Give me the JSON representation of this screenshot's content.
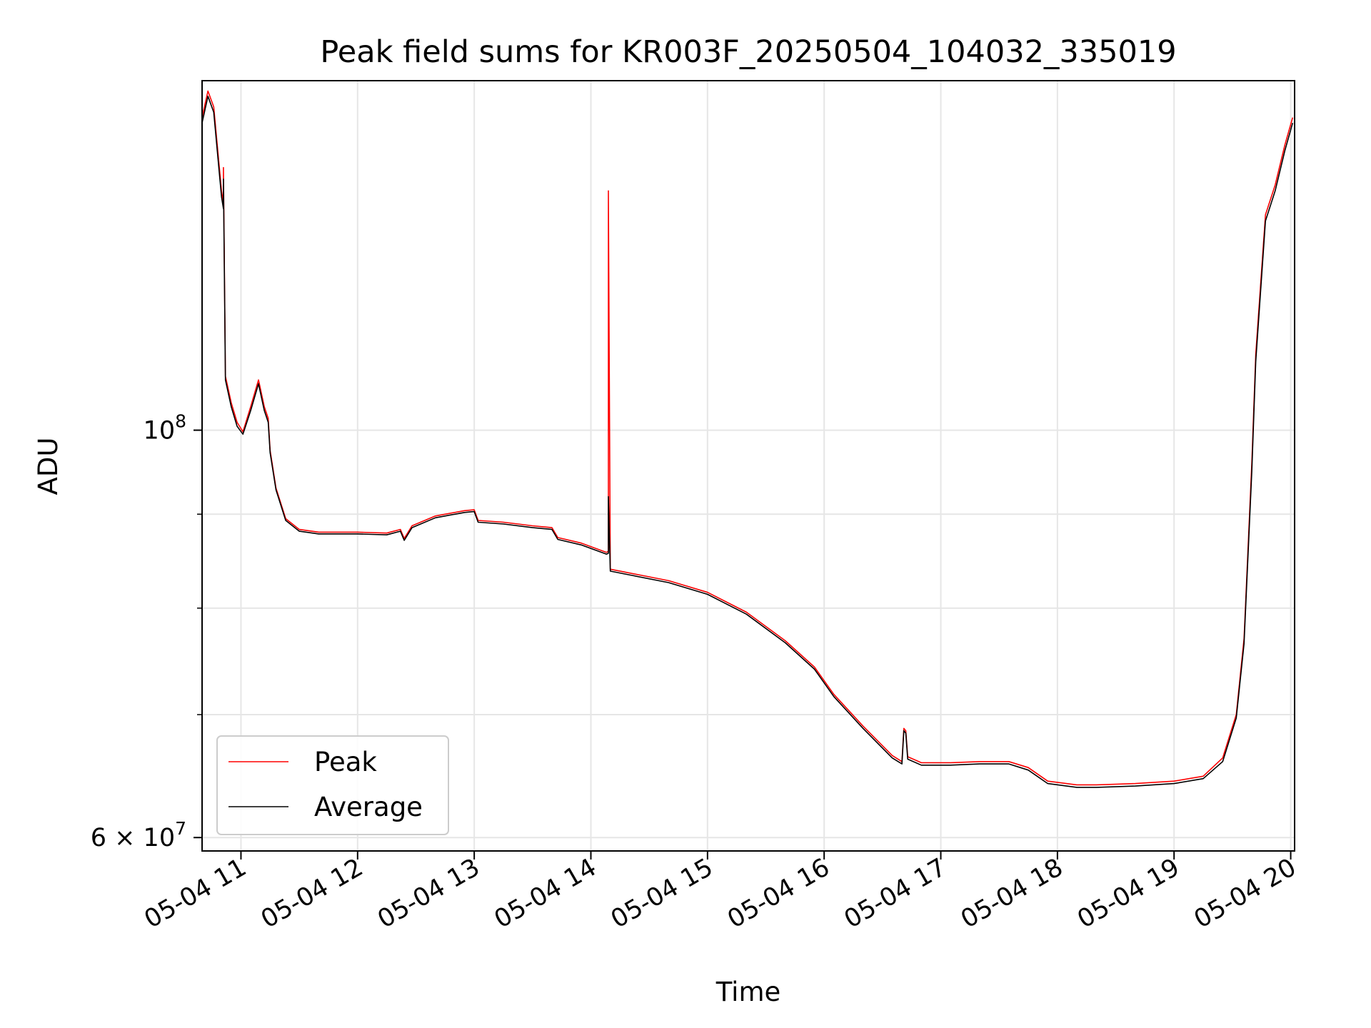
{
  "chart_data": {
    "type": "line",
    "title": "Peak field sums for KR003F_20250504_104032_335019",
    "xlabel": "Time",
    "ylabel": "ADU",
    "x_scale": "time",
    "y_scale": "log",
    "xlim": [
      "2025-05-04 10:40",
      "2025-05-04 20:02"
    ],
    "ylim": [
      59000000,
      155000000
    ],
    "x_ticks": [
      "2025-05-04 11:00",
      "2025-05-04 12:00",
      "2025-05-04 13:00",
      "2025-05-04 14:00",
      "2025-05-04 15:00",
      "2025-05-04 16:00",
      "2025-05-04 17:00",
      "2025-05-04 18:00",
      "2025-05-04 19:00",
      "2025-05-04 20:00"
    ],
    "x_tick_labels": [
      "05-04 11",
      "05-04 12",
      "05-04 13",
      "05-04 14",
      "05-04 15",
      "05-04 16",
      "05-04 17",
      "05-04 18",
      "05-04 19",
      "05-04 20"
    ],
    "y_major_ticks": [
      100000000,
      60000000
    ],
    "y_major_tick_labels": [
      {
        "base": "10",
        "exp": "8"
      },
      {
        "coef": "6 × ",
        "base": "10",
        "exp": "7"
      }
    ],
    "y_minor_ticks": [
      70000000,
      80000000,
      90000000
    ],
    "grid": true,
    "legend": "lower-left",
    "series": [
      {
        "name": "Peak",
        "color": "#ff0000",
        "points": [
          [
            "2025-05-04 10:40",
            148000000
          ],
          [
            "2025-05-04 10:43",
            153000000
          ],
          [
            "2025-05-04 10:46",
            150000000
          ],
          [
            "2025-05-04 10:50",
            135000000
          ],
          [
            "2025-05-04 10:51",
            133000000
          ],
          [
            "2025-05-04 10:51",
            139000000
          ],
          [
            "2025-05-04 10:52",
            107000000
          ],
          [
            "2025-05-04 10:55",
            103500000
          ],
          [
            "2025-05-04 10:58",
            101000000
          ],
          [
            "2025-05-04 11:01",
            99800000
          ],
          [
            "2025-05-04 11:05",
            103000000
          ],
          [
            "2025-05-04 11:09",
            106500000
          ],
          [
            "2025-05-04 11:12",
            103000000
          ],
          [
            "2025-05-04 11:14",
            101500000
          ],
          [
            "2025-05-04 11:15",
            97500000
          ],
          [
            "2025-05-04 11:18",
            93000000
          ],
          [
            "2025-05-04 11:23",
            89500000
          ],
          [
            "2025-05-04 11:30",
            88300000
          ],
          [
            "2025-05-04 11:40",
            88000000
          ],
          [
            "2025-05-04 12:00",
            88000000
          ],
          [
            "2025-05-04 12:15",
            87900000
          ],
          [
            "2025-05-04 12:22",
            88300000
          ],
          [
            "2025-05-04 12:24",
            87300000
          ],
          [
            "2025-05-04 12:28",
            88700000
          ],
          [
            "2025-05-04 12:40",
            89800000
          ],
          [
            "2025-05-04 12:55",
            90400000
          ],
          [
            "2025-05-04 13:00",
            90500000
          ],
          [
            "2025-05-04 13:02",
            89300000
          ],
          [
            "2025-05-04 13:15",
            89100000
          ],
          [
            "2025-05-04 13:30",
            88700000
          ],
          [
            "2025-05-04 13:40",
            88500000
          ],
          [
            "2025-05-04 13:43",
            87400000
          ],
          [
            "2025-05-04 13:55",
            86800000
          ],
          [
            "2025-05-04 14:08",
            85800000
          ],
          [
            "2025-05-04 14:09",
            85900000
          ],
          [
            "2025-05-04 14:09",
            135000000
          ],
          [
            "2025-05-04 14:10",
            84000000
          ],
          [
            "2025-05-04 14:20",
            83600000
          ],
          [
            "2025-05-04 14:40",
            82800000
          ],
          [
            "2025-05-04 15:00",
            81600000
          ],
          [
            "2025-05-04 15:20",
            79600000
          ],
          [
            "2025-05-04 15:40",
            76800000
          ],
          [
            "2025-05-04 15:55",
            74300000
          ],
          [
            "2025-05-04 16:05",
            71800000
          ],
          [
            "2025-05-04 16:20",
            69000000
          ],
          [
            "2025-05-04 16:35",
            66500000
          ],
          [
            "2025-05-04 16:40",
            66000000
          ],
          [
            "2025-05-04 16:41",
            68800000
          ],
          [
            "2025-05-04 16:42",
            68600000
          ],
          [
            "2025-05-04 16:43",
            66400000
          ],
          [
            "2025-05-04 16:50",
            65900000
          ],
          [
            "2025-05-04 17:05",
            65900000
          ],
          [
            "2025-05-04 17:20",
            66000000
          ],
          [
            "2025-05-04 17:35",
            66000000
          ],
          [
            "2025-05-04 17:45",
            65500000
          ],
          [
            "2025-05-04 17:55",
            64400000
          ],
          [
            "2025-05-04 18:10",
            64100000
          ],
          [
            "2025-05-04 18:20",
            64100000
          ],
          [
            "2025-05-04 18:40",
            64200000
          ],
          [
            "2025-05-04 19:00",
            64400000
          ],
          [
            "2025-05-04 19:15",
            64800000
          ],
          [
            "2025-05-04 19:25",
            66300000
          ],
          [
            "2025-05-04 19:32",
            70000000
          ],
          [
            "2025-05-04 19:36",
            77000000
          ],
          [
            "2025-05-04 19:40",
            96000000
          ],
          [
            "2025-05-04 19:42",
            110000000
          ],
          [
            "2025-05-04 19:47",
            131000000
          ],
          [
            "2025-05-04 19:52",
            136000000
          ],
          [
            "2025-05-04 19:57",
            143000000
          ],
          [
            "2025-05-04 20:01",
            148000000
          ]
        ]
      },
      {
        "name": "Average",
        "color": "#000000",
        "points": [
          [
            "2025-05-04 10:40",
            147000000
          ],
          [
            "2025-05-04 10:43",
            152000000
          ],
          [
            "2025-05-04 10:46",
            149000000
          ],
          [
            "2025-05-04 10:50",
            134000000
          ],
          [
            "2025-05-04 10:51",
            132000000
          ],
          [
            "2025-05-04 10:51",
            137000000
          ],
          [
            "2025-05-04 10:52",
            106500000
          ],
          [
            "2025-05-04 10:55",
            103000000
          ],
          [
            "2025-05-04 10:58",
            100500000
          ],
          [
            "2025-05-04 11:01",
            99500000
          ],
          [
            "2025-05-04 11:05",
            102500000
          ],
          [
            "2025-05-04 11:09",
            106000000
          ],
          [
            "2025-05-04 11:12",
            102500000
          ],
          [
            "2025-05-04 11:14",
            101000000
          ],
          [
            "2025-05-04 11:15",
            97200000
          ],
          [
            "2025-05-04 11:18",
            92800000
          ],
          [
            "2025-05-04 11:23",
            89300000
          ],
          [
            "2025-05-04 11:30",
            88100000
          ],
          [
            "2025-05-04 11:40",
            87800000
          ],
          [
            "2025-05-04 12:00",
            87800000
          ],
          [
            "2025-05-04 12:15",
            87700000
          ],
          [
            "2025-05-04 12:22",
            88100000
          ],
          [
            "2025-05-04 12:24",
            87100000
          ],
          [
            "2025-05-04 12:28",
            88500000
          ],
          [
            "2025-05-04 12:40",
            89600000
          ],
          [
            "2025-05-04 12:55",
            90200000
          ],
          [
            "2025-05-04 13:00",
            90300000
          ],
          [
            "2025-05-04 13:02",
            89100000
          ],
          [
            "2025-05-04 13:15",
            88900000
          ],
          [
            "2025-05-04 13:30",
            88500000
          ],
          [
            "2025-05-04 13:40",
            88300000
          ],
          [
            "2025-05-04 13:43",
            87200000
          ],
          [
            "2025-05-04 13:55",
            86600000
          ],
          [
            "2025-05-04 14:08",
            85600000
          ],
          [
            "2025-05-04 14:09",
            85700000
          ],
          [
            "2025-05-04 14:09",
            92000000
          ],
          [
            "2025-05-04 14:10",
            83800000
          ],
          [
            "2025-05-04 14:20",
            83400000
          ],
          [
            "2025-05-04 14:40",
            82600000
          ],
          [
            "2025-05-04 15:00",
            81400000
          ],
          [
            "2025-05-04 15:20",
            79400000
          ],
          [
            "2025-05-04 15:40",
            76600000
          ],
          [
            "2025-05-04 15:55",
            74100000
          ],
          [
            "2025-05-04 16:05",
            71600000
          ],
          [
            "2025-05-04 16:20",
            68800000
          ],
          [
            "2025-05-04 16:35",
            66300000
          ],
          [
            "2025-05-04 16:40",
            65800000
          ],
          [
            "2025-05-04 16:41",
            68600000
          ],
          [
            "2025-05-04 16:42",
            68400000
          ],
          [
            "2025-05-04 16:43",
            66200000
          ],
          [
            "2025-05-04 16:50",
            65700000
          ],
          [
            "2025-05-04 17:05",
            65700000
          ],
          [
            "2025-05-04 17:20",
            65800000
          ],
          [
            "2025-05-04 17:35",
            65800000
          ],
          [
            "2025-05-04 17:45",
            65300000
          ],
          [
            "2025-05-04 17:55",
            64200000
          ],
          [
            "2025-05-04 18:10",
            63900000
          ],
          [
            "2025-05-04 18:20",
            63900000
          ],
          [
            "2025-05-04 18:40",
            64000000
          ],
          [
            "2025-05-04 19:00",
            64200000
          ],
          [
            "2025-05-04 19:15",
            64600000
          ],
          [
            "2025-05-04 19:25",
            66000000
          ],
          [
            "2025-05-04 19:32",
            69700000
          ],
          [
            "2025-05-04 19:36",
            76500000
          ],
          [
            "2025-05-04 19:40",
            95000000
          ],
          [
            "2025-05-04 19:42",
            109000000
          ],
          [
            "2025-05-04 19:47",
            130000000
          ],
          [
            "2025-05-04 19:52",
            135000000
          ],
          [
            "2025-05-04 19:57",
            142000000
          ],
          [
            "2025-05-04 20:01",
            147000000
          ]
        ]
      }
    ]
  }
}
